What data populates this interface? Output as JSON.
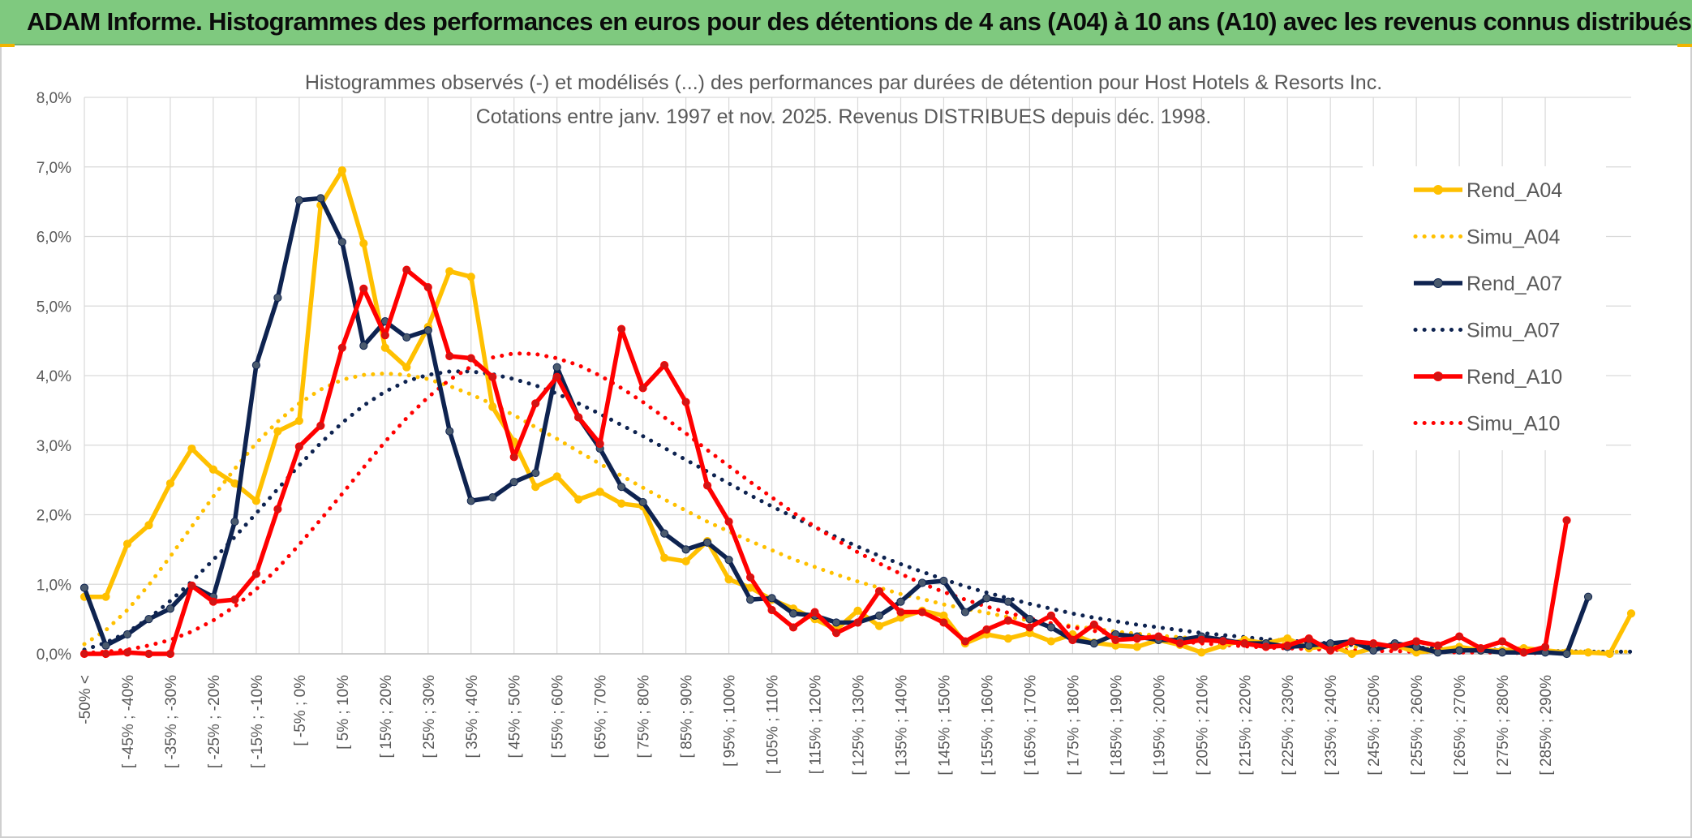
{
  "banner": {
    "title": "ADAM Informe. Histogrammes des performances en euros pour des détentions de 4 ans (A04) à 10 ans (A10) avec les revenus connus distribués"
  },
  "colors": {
    "banner_bg": "#7fc97f",
    "grid": "#d9d9d9",
    "axis_text": "#595959",
    "A04": "#ffc000",
    "A07": "#0e2350",
    "A07_marker": "#4a5a6e",
    "A10": "#ff0000",
    "A10_marker": "#d01515"
  },
  "chart_data": {
    "type": "line",
    "title": "Histogrammes observés (-) et modélisés (...) des performances par durées de détention pour Host Hotels & Resorts Inc.",
    "subtitle": "Cotations entre janv. 1997 et nov. 2025. Revenus DISTRIBUES depuis déc. 1998.",
    "xlabel": "",
    "ylabel": "",
    "ylim": [
      0,
      8
    ],
    "yticks": [
      "0,0%",
      "1,0%",
      "2,0%",
      "3,0%",
      "4,0%",
      "5,0%",
      "6,0%",
      "7,0%",
      "8,0%"
    ],
    "grid": true,
    "legend_position": "top-right",
    "x_tick_labels": [
      "-50% <",
      "[ -45% ; -40%",
      "[ -35% ; -30%",
      "[ -25% ; -20%",
      "[ -15% ; -10%",
      "[ -5% ; 0%",
      "[ 5% ; 10%",
      "[ 15% ; 20%",
      "[ 25% ; 30%",
      "[ 35% ; 40%",
      "[ 45% ; 50%",
      "[ 55% ; 60%",
      "[ 65% ; 70%",
      "[ 75% ; 80%",
      "[ 85% ; 90%",
      "[ 95% ; 100%",
      "[ 105% ; 110%",
      "[ 115% ; 120%",
      "[ 125% ; 130%",
      "[ 135% ; 140%",
      "[ 145% ; 150%",
      "[ 155% ; 160%",
      "[ 165% ; 170%",
      "[ 175% ; 180%",
      "[ 185% ; 190%",
      "[ 195% ; 200%",
      "[ 205% ; 210%",
      "[ 215% ; 220%",
      "[ 225% ; 230%",
      "[ 235% ; 240%",
      "[ 245% ; 250%",
      "[ 255% ; 260%",
      "[ 265% ; 270%",
      "[ 275% ; 280%",
      "[ 285% ; 290%"
    ],
    "series": [
      {
        "name": "Rend_A04",
        "style": "solid",
        "markers": true,
        "values": [
          0.82,
          0.82,
          1.58,
          1.85,
          2.45,
          2.95,
          2.65,
          2.45,
          2.2,
          3.2,
          3.35,
          6.45,
          6.95,
          5.9,
          4.4,
          4.12,
          4.7,
          5.5,
          5.42,
          3.55,
          3.05,
          2.4,
          2.55,
          2.22,
          2.33,
          2.16,
          2.12,
          1.38,
          1.33,
          1.62,
          1.07,
          0.95,
          0.78,
          0.65,
          0.5,
          0.35,
          0.62,
          0.4,
          0.52,
          0.62,
          0.55,
          0.15,
          0.28,
          0.22,
          0.3,
          0.18,
          0.28,
          0.16,
          0.12,
          0.1,
          0.2,
          0.13,
          0.02,
          0.12,
          0.2,
          0.15,
          0.22,
          0.08,
          0.12,
          0.0,
          0.08,
          0.13,
          0.02,
          0.05,
          0.1,
          0.05,
          0.05,
          0.08,
          0.05,
          0.02,
          0.02,
          0.0,
          0.58
        ]
      },
      {
        "name": "Simu_A04",
        "style": "dotted",
        "markers": false,
        "values": [
          0.14,
          0.34,
          0.63,
          0.99,
          1.4,
          1.83,
          2.26,
          2.66,
          3.03,
          3.34,
          3.6,
          3.8,
          3.94,
          4.01,
          4.03,
          4.01,
          3.95,
          3.85,
          3.73,
          3.59,
          3.43,
          3.26,
          3.09,
          2.91,
          2.73,
          2.56,
          2.39,
          2.22,
          2.06,
          1.9,
          1.76,
          1.62,
          1.49,
          1.36,
          1.25,
          1.14,
          1.04,
          0.95,
          0.86,
          0.79,
          0.71,
          0.65,
          0.59,
          0.53,
          0.48,
          0.44,
          0.4,
          0.36,
          0.32,
          0.29,
          0.26,
          0.24,
          0.21,
          0.19,
          0.17,
          0.16,
          0.14,
          0.13,
          0.12,
          0.1,
          0.09,
          0.08,
          0.08,
          0.07,
          0.06,
          0.06,
          0.05,
          0.05,
          0.04,
          0.04,
          0.03,
          0.03,
          0.03
        ]
      },
      {
        "name": "Rend_A07",
        "style": "solid",
        "markers": true,
        "values": [
          0.95,
          0.12,
          0.28,
          0.5,
          0.65,
          0.98,
          0.82,
          1.9,
          4.15,
          5.12,
          6.52,
          6.55,
          5.92,
          4.43,
          4.78,
          4.55,
          4.65,
          3.2,
          2.2,
          2.25,
          2.47,
          2.6,
          4.12,
          3.4,
          2.95,
          2.4,
          2.18,
          1.73,
          1.5,
          1.6,
          1.35,
          0.78,
          0.8,
          0.58,
          0.55,
          0.45,
          0.45,
          0.55,
          0.75,
          1.02,
          1.05,
          0.6,
          0.8,
          0.75,
          0.5,
          0.38,
          0.2,
          0.15,
          0.28,
          0.25,
          0.2,
          0.2,
          0.25,
          0.2,
          0.15,
          0.15,
          0.1,
          0.12,
          0.15,
          0.18,
          0.05,
          0.15,
          0.1,
          0.02,
          0.05,
          0.05,
          0.02,
          0.02,
          0.02,
          0.0,
          0.82
        ]
      },
      {
        "name": "Simu_A07",
        "style": "dotted",
        "markers": false,
        "values": [
          0.06,
          0.16,
          0.31,
          0.51,
          0.76,
          1.04,
          1.35,
          1.68,
          2.02,
          2.37,
          2.71,
          3.03,
          3.32,
          3.57,
          3.77,
          3.92,
          4.01,
          4.06,
          4.06,
          4.02,
          3.95,
          3.86,
          3.74,
          3.6,
          3.45,
          3.29,
          3.13,
          2.96,
          2.79,
          2.62,
          2.45,
          2.28,
          2.12,
          1.97,
          1.82,
          1.68,
          1.54,
          1.41,
          1.29,
          1.18,
          1.07,
          0.97,
          0.88,
          0.8,
          0.72,
          0.65,
          0.58,
          0.52,
          0.47,
          0.42,
          0.38,
          0.34,
          0.3,
          0.27,
          0.24,
          0.21,
          0.19,
          0.17,
          0.15,
          0.13,
          0.12,
          0.1,
          0.09,
          0.08,
          0.07,
          0.06,
          0.06,
          0.05,
          0.04,
          0.04,
          0.03,
          0.03,
          0.03
        ]
      },
      {
        "name": "Rend_A10",
        "style": "solid",
        "markers": true,
        "values": [
          0.0,
          0.0,
          0.02,
          0.0,
          0.0,
          0.98,
          0.75,
          0.78,
          1.15,
          2.08,
          2.98,
          3.28,
          4.4,
          5.25,
          4.58,
          5.52,
          5.27,
          4.28,
          4.25,
          3.98,
          2.83,
          3.6,
          3.98,
          3.4,
          3.02,
          4.67,
          3.82,
          4.15,
          3.62,
          2.42,
          1.9,
          1.1,
          0.63,
          0.38,
          0.6,
          0.3,
          0.45,
          0.9,
          0.6,
          0.6,
          0.45,
          0.18,
          0.35,
          0.48,
          0.38,
          0.55,
          0.2,
          0.42,
          0.2,
          0.22,
          0.25,
          0.15,
          0.2,
          0.18,
          0.15,
          0.1,
          0.12,
          0.22,
          0.05,
          0.18,
          0.15,
          0.1,
          0.18,
          0.12,
          0.25,
          0.08,
          0.18,
          0.02,
          0.1,
          1.92
        ]
      },
      {
        "name": "Simu_A10",
        "style": "dotted",
        "markers": false,
        "values": [
          0.01,
          0.03,
          0.06,
          0.12,
          0.2,
          0.32,
          0.48,
          0.68,
          0.93,
          1.23,
          1.57,
          1.93,
          2.3,
          2.68,
          3.05,
          3.39,
          3.69,
          3.94,
          4.13,
          4.26,
          4.32,
          4.31,
          4.25,
          4.15,
          4.0,
          3.82,
          3.62,
          3.4,
          3.17,
          2.93,
          2.7,
          2.47,
          2.25,
          2.03,
          1.83,
          1.64,
          1.46,
          1.3,
          1.15,
          1.01,
          0.89,
          0.78,
          0.68,
          0.59,
          0.51,
          0.44,
          0.38,
          0.33,
          0.28,
          0.24,
          0.21,
          0.18,
          0.15,
          0.13,
          0.11,
          0.09,
          0.08,
          0.07,
          0.06,
          0.05,
          0.04,
          0.04,
          0.03,
          0.03,
          0.02,
          0.02,
          0.02,
          0.01,
          0.01,
          0.01
        ]
      }
    ]
  }
}
